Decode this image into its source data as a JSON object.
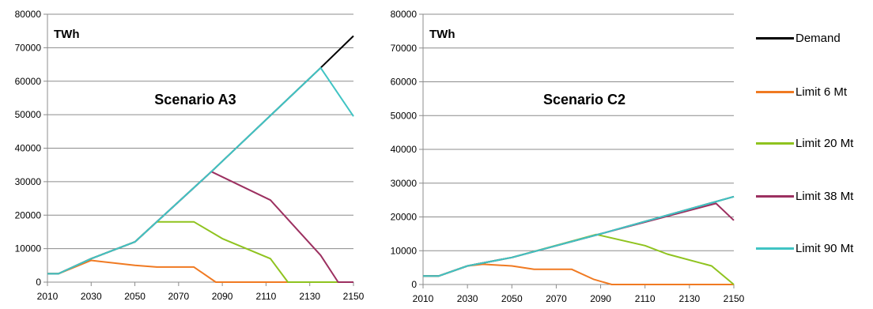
{
  "chart_data": [
    {
      "type": "line",
      "title": "Scenario A3",
      "unit_label": "TWh",
      "xlabel": "",
      "ylabel": "",
      "xlim": [
        2010,
        2150
      ],
      "ylim": [
        0,
        80000
      ],
      "xticks": [
        "2010",
        "2030",
        "2050",
        "2070",
        "2090",
        "2110",
        "2130",
        "2150"
      ],
      "yticks": [
        "0",
        "10000",
        "20000",
        "30000",
        "40000",
        "50000",
        "60000",
        "70000",
        "80000"
      ],
      "grid": "horizontal",
      "series": [
        {
          "name": "Demand",
          "color": "#000000",
          "points": [
            [
              2010,
              2500
            ],
            [
              2015,
              2500
            ],
            [
              2030,
              7000
            ],
            [
              2050,
              12000
            ],
            [
              2085,
              33000
            ],
            [
              2135,
              64000
            ],
            [
              2150,
              73500
            ]
          ]
        },
        {
          "name": "Limit 6 Mt",
          "color": "#f07a22",
          "points": [
            [
              2010,
              2500
            ],
            [
              2015,
              2500
            ],
            [
              2030,
              6500
            ],
            [
              2050,
              5000
            ],
            [
              2060,
              4500
            ],
            [
              2077,
              4500
            ],
            [
              2087,
              0
            ],
            [
              2150,
              0
            ]
          ]
        },
        {
          "name": "Limit 20 Mt",
          "color": "#8fc31f",
          "points": [
            [
              2010,
              2500
            ],
            [
              2015,
              2500
            ],
            [
              2030,
              7000
            ],
            [
              2050,
              12000
            ],
            [
              2060,
              18000
            ],
            [
              2077,
              18000
            ],
            [
              2090,
              13000
            ],
            [
              2112,
              7000
            ],
            [
              2120,
              0
            ],
            [
              2150,
              0
            ]
          ]
        },
        {
          "name": "Limit 38 Mt",
          "color": "#9c3060",
          "points": [
            [
              2010,
              2500
            ],
            [
              2015,
              2500
            ],
            [
              2030,
              7000
            ],
            [
              2050,
              12000
            ],
            [
              2085,
              33000
            ],
            [
              2112,
              24500
            ],
            [
              2135,
              8000
            ],
            [
              2143,
              0
            ],
            [
              2150,
              0
            ]
          ]
        },
        {
          "name": "Limit 90 Mt",
          "color": "#40c4c4",
          "points": [
            [
              2010,
              2500
            ],
            [
              2015,
              2500
            ],
            [
              2030,
              7000
            ],
            [
              2050,
              12000
            ],
            [
              2085,
              33000
            ],
            [
              2135,
              64000
            ],
            [
              2150,
              49500
            ]
          ]
        }
      ]
    },
    {
      "type": "line",
      "title": "Scenario C2",
      "unit_label": "TWh",
      "xlabel": "",
      "ylabel": "",
      "xlim": [
        2010,
        2150
      ],
      "ylim": [
        0,
        80000
      ],
      "xticks": [
        "2010",
        "2030",
        "2050",
        "2070",
        "2090",
        "2110",
        "2130",
        "2150"
      ],
      "yticks": [
        "0",
        "10000",
        "20000",
        "30000",
        "40000",
        "50000",
        "60000",
        "70000",
        "80000"
      ],
      "grid": "horizontal",
      "series": [
        {
          "name": "Demand",
          "color": "#000000",
          "points": [
            [
              2010,
              2500
            ],
            [
              2017,
              2500
            ],
            [
              2030,
              5500
            ],
            [
              2050,
              8000
            ],
            [
              2090,
              15000
            ],
            [
              2150,
              26000
            ]
          ]
        },
        {
          "name": "Limit 6 Mt",
          "color": "#f07a22",
          "points": [
            [
              2010,
              2500
            ],
            [
              2017,
              2500
            ],
            [
              2030,
              5500
            ],
            [
              2037,
              6000
            ],
            [
              2050,
              5500
            ],
            [
              2060,
              4500
            ],
            [
              2077,
              4500
            ],
            [
              2087,
              1500
            ],
            [
              2095,
              0
            ],
            [
              2150,
              0
            ]
          ]
        },
        {
          "name": "Limit 20 Mt",
          "color": "#8fc31f",
          "points": [
            [
              2010,
              2500
            ],
            [
              2017,
              2500
            ],
            [
              2030,
              5500
            ],
            [
              2050,
              8000
            ],
            [
              2088,
              14800
            ],
            [
              2110,
              11500
            ],
            [
              2120,
              9000
            ],
            [
              2140,
              5500
            ],
            [
              2150,
              0
            ]
          ]
        },
        {
          "name": "Limit 38 Mt",
          "color": "#9c3060",
          "points": [
            [
              2010,
              2500
            ],
            [
              2017,
              2500
            ],
            [
              2030,
              5500
            ],
            [
              2050,
              8000
            ],
            [
              2090,
              15000
            ],
            [
              2142,
              24000
            ],
            [
              2150,
              19000
            ]
          ]
        },
        {
          "name": "Limit 90 Mt",
          "color": "#40c4c4",
          "points": [
            [
              2010,
              2500
            ],
            [
              2017,
              2500
            ],
            [
              2030,
              5500
            ],
            [
              2050,
              8000
            ],
            [
              2090,
              15000
            ],
            [
              2150,
              26000
            ]
          ]
        }
      ]
    }
  ],
  "legend": {
    "placement": "right",
    "items": [
      {
        "label": "Demand",
        "color": "#000000"
      },
      {
        "label": "Limit 6 Mt",
        "color": "#f07a22"
      },
      {
        "label": "Limit 20 Mt",
        "color": "#8fc31f"
      },
      {
        "label": "Limit 38 Mt",
        "color": "#9c3060"
      },
      {
        "label": "Limit 90 Mt",
        "color": "#40c4c4"
      }
    ]
  }
}
